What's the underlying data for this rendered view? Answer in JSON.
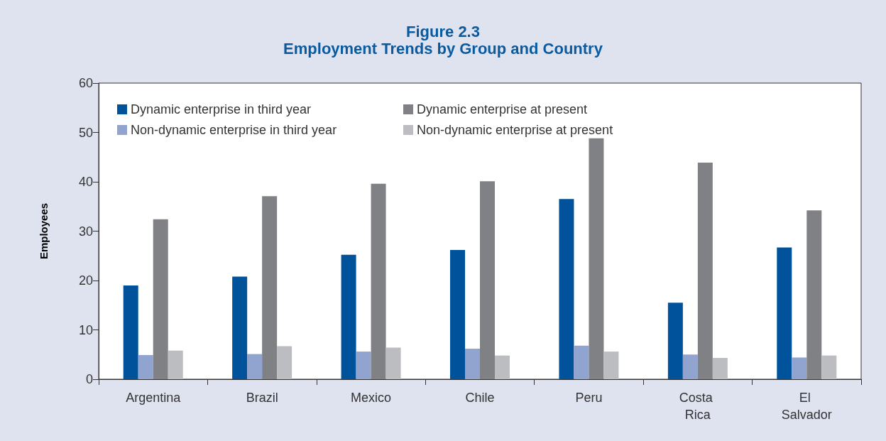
{
  "chart_data": {
    "type": "bar",
    "title": "Figure 2.3",
    "subtitle": "Employment Trends by Group and Country",
    "ylabel": "Employees",
    "categories": [
      "Argentina",
      "Brazil",
      "Mexico",
      "Chile",
      "Peru",
      "Costa Rica",
      "El Salvador"
    ],
    "series": [
      {
        "name": "Dynamic enterprise in third year",
        "color": "#00529b",
        "values": [
          19.0,
          20.8,
          25.2,
          26.2,
          36.5,
          15.5,
          26.7
        ]
      },
      {
        "name": "Non-dynamic enterprise in third year",
        "color": "#91a3cf",
        "values": [
          4.9,
          5.1,
          5.6,
          6.2,
          6.8,
          5.0,
          4.4
        ]
      },
      {
        "name": "Dynamic enterprise at present",
        "color": "#808184",
        "values": [
          32.4,
          37.1,
          39.6,
          40.1,
          48.8,
          43.9,
          34.2
        ]
      },
      {
        "name": "Non-dynamic enterprise at present",
        "color": "#bcbdc0",
        "values": [
          5.8,
          6.7,
          6.4,
          4.8,
          5.6,
          4.3,
          4.8
        ]
      }
    ],
    "ylim": [
      0,
      60
    ],
    "yticks": [
      0,
      10,
      20,
      30,
      40,
      50,
      60
    ],
    "grid": false,
    "legend": "top left"
  }
}
